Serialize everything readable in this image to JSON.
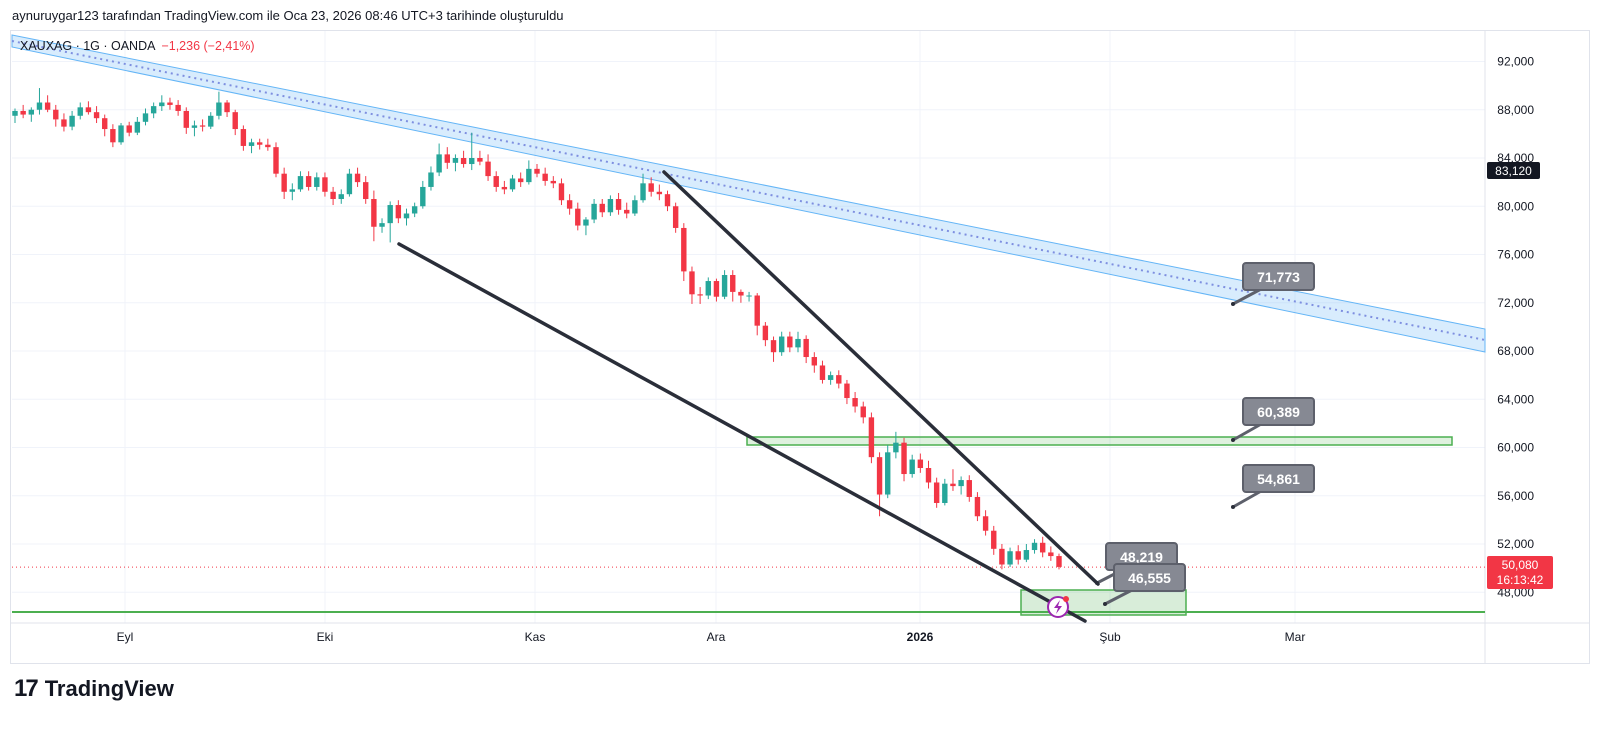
{
  "header": {
    "credit": "aynuruygar123 tarafından TradingView.com ile Oca 23, 2026 08:46 UTC+3 tarihinde oluşturuldu"
  },
  "legend": {
    "symbol": "XAUXAG · 1G · OANDA",
    "change": "−1,236 (−2,41%)"
  },
  "brand": {
    "logo": "17",
    "name": "TradingView"
  },
  "colors": {
    "up": "#26a69a",
    "down": "#f23645",
    "channel": "#64b5f6",
    "zone": "#4caf50",
    "trend": "#2a2e39",
    "callout": "#868993"
  },
  "chart_data": {
    "type": "candlestick",
    "ylim": [
      44000,
      94000
    ],
    "y_ticks": [
      "92,000",
      "88,000",
      "84,000",
      "80,000",
      "76,000",
      "72,000",
      "68,000",
      "64,000",
      "60,000",
      "56,000",
      "52,000",
      "48,000"
    ],
    "x_ticks": [
      "Eyl",
      "Eki",
      "Kas",
      "Ara",
      "2026",
      "Şub",
      "Mar"
    ],
    "current_price_label": "50,080",
    "countdown_label": "16:13:42",
    "channel_label": "83,120",
    "callouts": [
      "71,773",
      "60,389",
      "54,861",
      "48,219",
      "46,555"
    ],
    "candles": [
      [
        87.5,
        88.1,
        86.9,
        87.9
      ],
      [
        87.9,
        88.4,
        87.3,
        87.6
      ],
      [
        87.6,
        88.2,
        87.0,
        88.0
      ],
      [
        88.0,
        89.8,
        87.6,
        88.6
      ],
      [
        88.6,
        89.2,
        87.8,
        88.0
      ],
      [
        88.0,
        88.4,
        86.6,
        87.2
      ],
      [
        87.2,
        87.7,
        86.2,
        86.6
      ],
      [
        86.6,
        87.9,
        86.3,
        87.5
      ],
      [
        87.5,
        88.6,
        87.2,
        88.2
      ],
      [
        88.2,
        88.7,
        87.6,
        87.8
      ],
      [
        87.8,
        88.3,
        86.9,
        87.3
      ],
      [
        87.3,
        87.6,
        85.8,
        86.4
      ],
      [
        86.4,
        86.8,
        84.9,
        85.3
      ],
      [
        85.3,
        86.9,
        85.1,
        86.7
      ],
      [
        86.7,
        87.0,
        85.8,
        86.1
      ],
      [
        86.1,
        87.4,
        85.9,
        87.0
      ],
      [
        87.0,
        88.1,
        86.7,
        87.7
      ],
      [
        87.7,
        88.6,
        87.3,
        88.3
      ],
      [
        88.3,
        89.2,
        87.9,
        88.6
      ],
      [
        88.6,
        89.0,
        88.0,
        88.4
      ],
      [
        88.4,
        88.8,
        87.5,
        87.9
      ],
      [
        87.9,
        88.2,
        86.0,
        86.5
      ],
      [
        86.5,
        87.1,
        85.8,
        86.7
      ],
      [
        86.7,
        87.2,
        86.2,
        86.6
      ],
      [
        86.6,
        87.8,
        86.4,
        87.5
      ],
      [
        87.5,
        89.5,
        87.2,
        88.6
      ],
      [
        88.6,
        88.8,
        87.4,
        87.8
      ],
      [
        87.8,
        88.0,
        85.9,
        86.4
      ],
      [
        86.4,
        86.7,
        84.6,
        85.0
      ],
      [
        85.0,
        85.6,
        84.4,
        85.3
      ],
      [
        85.3,
        85.6,
        84.7,
        85.1
      ],
      [
        85.1,
        85.6,
        84.6,
        84.9
      ],
      [
        84.9,
        85.3,
        82.4,
        82.7
      ],
      [
        82.7,
        83.2,
        80.6,
        81.2
      ],
      [
        81.2,
        81.9,
        80.5,
        81.4
      ],
      [
        81.4,
        82.9,
        81.2,
        82.5
      ],
      [
        82.5,
        82.9,
        81.3,
        81.6
      ],
      [
        81.6,
        82.8,
        81.3,
        82.4
      ],
      [
        82.4,
        82.8,
        80.8,
        81.2
      ],
      [
        81.2,
        81.6,
        80.1,
        80.6
      ],
      [
        80.6,
        81.4,
        80.2,
        81.0
      ],
      [
        81.0,
        83.1,
        80.8,
        82.7
      ],
      [
        82.7,
        83.2,
        81.6,
        82.0
      ],
      [
        82.0,
        82.5,
        80.2,
        80.6
      ],
      [
        80.6,
        81.3,
        77.1,
        78.3
      ],
      [
        78.3,
        79.0,
        77.8,
        78.6
      ],
      [
        78.6,
        80.4,
        77.0,
        80.1
      ],
      [
        80.1,
        80.5,
        78.6,
        79.0
      ],
      [
        79.0,
        79.8,
        78.4,
        79.4
      ],
      [
        79.4,
        80.3,
        79.1,
        80.0
      ],
      [
        80.0,
        82.1,
        79.8,
        81.6
      ],
      [
        81.6,
        83.3,
        81.3,
        82.8
      ],
      [
        82.8,
        85.2,
        82.5,
        84.3
      ],
      [
        84.3,
        84.9,
        83.1,
        83.6
      ],
      [
        83.6,
        84.3,
        82.9,
        84.0
      ],
      [
        84.0,
        84.6,
        83.2,
        83.5
      ],
      [
        83.5,
        86.1,
        83.0,
        84.0
      ],
      [
        84.0,
        84.6,
        83.4,
        83.7
      ],
      [
        83.7,
        84.3,
        82.1,
        82.5
      ],
      [
        82.5,
        82.9,
        81.2,
        81.6
      ],
      [
        81.6,
        82.1,
        81.0,
        81.4
      ],
      [
        81.4,
        82.6,
        81.2,
        82.3
      ],
      [
        82.3,
        82.8,
        81.6,
        82.0
      ],
      [
        82.0,
        83.8,
        81.8,
        83.1
      ],
      [
        83.1,
        83.5,
        82.4,
        82.7
      ],
      [
        82.7,
        83.2,
        81.7,
        82.1
      ],
      [
        82.1,
        82.5,
        81.5,
        81.9
      ],
      [
        81.9,
        82.3,
        80.1,
        80.5
      ],
      [
        80.5,
        81.0,
        79.3,
        79.8
      ],
      [
        79.8,
        80.3,
        78.0,
        78.4
      ],
      [
        78.4,
        79.1,
        77.6,
        78.9
      ],
      [
        78.9,
        80.6,
        78.6,
        80.2
      ],
      [
        80.2,
        80.6,
        79.1,
        79.5
      ],
      [
        79.5,
        80.9,
        79.2,
        80.6
      ],
      [
        80.6,
        81.1,
        79.3,
        79.7
      ],
      [
        79.7,
        80.3,
        79.0,
        79.4
      ],
      [
        79.4,
        80.9,
        79.2,
        80.5
      ],
      [
        80.5,
        82.7,
        80.3,
        81.9
      ],
      [
        81.9,
        82.4,
        80.8,
        81.2
      ],
      [
        81.2,
        81.8,
        80.5,
        81.0
      ],
      [
        81.0,
        81.3,
        79.6,
        80.0
      ],
      [
        80.0,
        80.3,
        77.8,
        78.2
      ],
      [
        78.2,
        78.6,
        73.8,
        74.6
      ],
      [
        74.6,
        75.0,
        71.9,
        72.7
      ],
      [
        72.7,
        73.3,
        71.9,
        72.6
      ],
      [
        72.6,
        74.1,
        72.3,
        73.8
      ],
      [
        73.8,
        74.0,
        72.1,
        72.5
      ],
      [
        72.5,
        74.7,
        72.3,
        74.3
      ],
      [
        74.3,
        74.7,
        72.1,
        72.9
      ],
      [
        72.9,
        73.1,
        72.0,
        72.6
      ],
      [
        72.6,
        72.9,
        72.1,
        72.6
      ],
      [
        72.6,
        72.8,
        69.3,
        70.1
      ],
      [
        70.1,
        70.4,
        68.4,
        68.9
      ],
      [
        68.9,
        69.2,
        67.1,
        67.9
      ],
      [
        67.9,
        69.6,
        67.6,
        69.2
      ],
      [
        69.2,
        69.6,
        67.9,
        68.3
      ],
      [
        68.3,
        69.6,
        67.9,
        69.0
      ],
      [
        69.0,
        69.3,
        67.0,
        67.5
      ],
      [
        67.5,
        67.9,
        66.2,
        66.8
      ],
      [
        66.8,
        67.2,
        65.3,
        65.6
      ],
      [
        65.6,
        66.3,
        65.2,
        66.0
      ],
      [
        66.0,
        66.4,
        64.9,
        65.3
      ],
      [
        65.3,
        65.6,
        63.6,
        64.1
      ],
      [
        64.1,
        64.6,
        62.9,
        63.4
      ],
      [
        63.4,
        63.8,
        62.0,
        62.5
      ],
      [
        62.5,
        62.9,
        58.7,
        59.2
      ],
      [
        59.2,
        59.6,
        54.3,
        56.1
      ],
      [
        56.1,
        60.2,
        55.8,
        59.6
      ],
      [
        59.6,
        61.3,
        59.1,
        60.4
      ],
      [
        60.4,
        60.8,
        57.2,
        57.8
      ],
      [
        57.8,
        59.4,
        57.5,
        59.0
      ],
      [
        59.0,
        59.5,
        57.9,
        58.3
      ],
      [
        58.3,
        58.9,
        56.6,
        57.1
      ],
      [
        57.1,
        57.5,
        55.0,
        55.4
      ],
      [
        55.4,
        57.4,
        55.2,
        57.0
      ],
      [
        57.0,
        58.2,
        56.4,
        56.8
      ],
      [
        56.8,
        57.6,
        56.1,
        57.3
      ],
      [
        57.3,
        57.7,
        55.5,
        55.9
      ],
      [
        55.9,
        56.3,
        53.9,
        54.3
      ],
      [
        54.3,
        54.8,
        52.7,
        53.1
      ],
      [
        53.1,
        53.5,
        51.1,
        51.6
      ],
      [
        51.6,
        52.0,
        49.9,
        50.3
      ],
      [
        50.3,
        51.7,
        50.1,
        51.4
      ],
      [
        51.4,
        51.9,
        50.3,
        50.7
      ],
      [
        50.7,
        52.0,
        50.5,
        51.5
      ],
      [
        51.5,
        52.4,
        51.2,
        52.1
      ],
      [
        52.1,
        52.6,
        50.9,
        51.3
      ],
      [
        51.3,
        51.8,
        50.6,
        51.0
      ],
      [
        51.0,
        51.2,
        49.9,
        50.1
      ]
    ]
  }
}
